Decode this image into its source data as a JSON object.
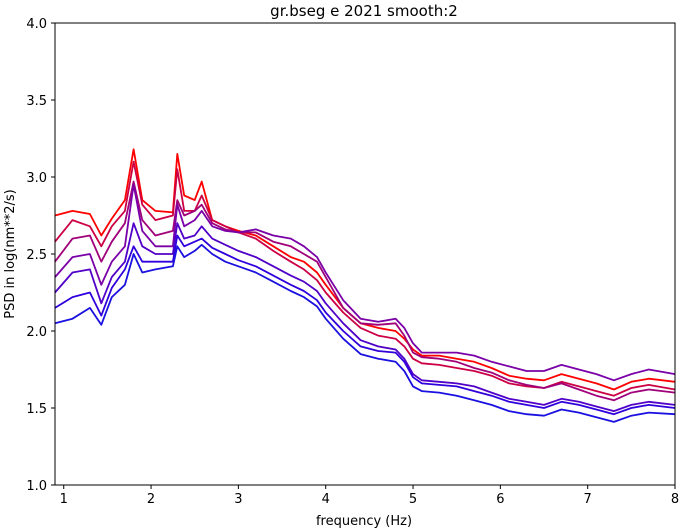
{
  "chart_data": {
    "type": "line",
    "title": "gr.bseg e 2021 smooth:2",
    "xlabel": "frequency (Hz)",
    "ylabel": "PSD in log(nm**2/s)",
    "xlim": [
      0.9,
      8.0
    ],
    "ylim": [
      1.0,
      4.0
    ],
    "xticks": [
      1,
      2,
      3,
      4,
      5,
      6,
      7,
      8
    ],
    "yticks": [
      1.0,
      1.5,
      2.0,
      2.5,
      3.0,
      3.5,
      4.0
    ],
    "grid": false,
    "legend": "none",
    "x": [
      0.9,
      1.1,
      1.3,
      1.43,
      1.55,
      1.7,
      1.8,
      1.9,
      2.05,
      2.25,
      2.3,
      2.38,
      2.5,
      2.58,
      2.7,
      2.85,
      3.0,
      3.2,
      3.4,
      3.6,
      3.75,
      3.9,
      4.0,
      4.2,
      4.4,
      4.6,
      4.8,
      4.9,
      5.0,
      5.1,
      5.3,
      5.5,
      5.7,
      5.9,
      6.1,
      6.3,
      6.5,
      6.7,
      6.9,
      7.1,
      7.3,
      7.5,
      7.7,
      8.0
    ],
    "series": [
      {
        "color": "#ff0000",
        "values": [
          2.75,
          2.78,
          2.76,
          2.62,
          2.73,
          2.85,
          3.18,
          2.85,
          2.78,
          2.77,
          3.15,
          2.88,
          2.85,
          2.97,
          2.72,
          2.68,
          2.65,
          2.62,
          2.55,
          2.48,
          2.45,
          2.38,
          2.3,
          2.15,
          2.05,
          2.02,
          2.0,
          1.95,
          1.88,
          1.84,
          1.84,
          1.82,
          1.8,
          1.76,
          1.71,
          1.69,
          1.68,
          1.72,
          1.69,
          1.66,
          1.62,
          1.67,
          1.69,
          1.67
        ]
      },
      {
        "color": "#cc0044",
        "values": [
          2.58,
          2.72,
          2.68,
          2.55,
          2.68,
          2.78,
          3.1,
          2.82,
          2.72,
          2.75,
          3.05,
          2.78,
          2.78,
          2.88,
          2.72,
          2.68,
          2.64,
          2.6,
          2.52,
          2.45,
          2.4,
          2.33,
          2.25,
          2.12,
          2.02,
          1.97,
          1.95,
          1.9,
          1.82,
          1.79,
          1.78,
          1.76,
          1.74,
          1.71,
          1.66,
          1.64,
          1.63,
          1.67,
          1.64,
          1.61,
          1.58,
          1.63,
          1.65,
          1.62
        ]
      },
      {
        "color": "#a0007a",
        "values": [
          2.45,
          2.6,
          2.62,
          2.45,
          2.58,
          2.7,
          2.97,
          2.72,
          2.62,
          2.65,
          2.85,
          2.75,
          2.78,
          2.82,
          2.7,
          2.66,
          2.64,
          2.64,
          2.58,
          2.55,
          2.5,
          2.45,
          2.35,
          2.15,
          2.05,
          2.04,
          2.05,
          1.97,
          1.86,
          1.83,
          1.82,
          1.8,
          1.76,
          1.73,
          1.68,
          1.65,
          1.63,
          1.66,
          1.62,
          1.58,
          1.55,
          1.6,
          1.62,
          1.6
        ]
      },
      {
        "color": "#7a00a8",
        "values": [
          2.35,
          2.48,
          2.5,
          2.3,
          2.45,
          2.55,
          2.95,
          2.65,
          2.55,
          2.55,
          2.82,
          2.68,
          2.72,
          2.78,
          2.68,
          2.65,
          2.64,
          2.66,
          2.62,
          2.6,
          2.55,
          2.48,
          2.38,
          2.2,
          2.08,
          2.06,
          2.08,
          2.02,
          1.92,
          1.86,
          1.86,
          1.86,
          1.84,
          1.8,
          1.77,
          1.74,
          1.74,
          1.78,
          1.75,
          1.72,
          1.68,
          1.72,
          1.75,
          1.72
        ]
      },
      {
        "color": "#5000c8",
        "values": [
          2.25,
          2.38,
          2.4,
          2.18,
          2.35,
          2.45,
          2.7,
          2.55,
          2.5,
          2.5,
          2.7,
          2.6,
          2.62,
          2.68,
          2.6,
          2.56,
          2.52,
          2.48,
          2.42,
          2.36,
          2.32,
          2.26,
          2.18,
          2.05,
          1.94,
          1.9,
          1.88,
          1.82,
          1.72,
          1.68,
          1.67,
          1.66,
          1.64,
          1.6,
          1.56,
          1.54,
          1.52,
          1.56,
          1.54,
          1.51,
          1.48,
          1.52,
          1.54,
          1.52
        ]
      },
      {
        "color": "#3000dd",
        "values": [
          2.15,
          2.22,
          2.25,
          2.1,
          2.28,
          2.4,
          2.55,
          2.45,
          2.45,
          2.45,
          2.62,
          2.55,
          2.58,
          2.6,
          2.54,
          2.5,
          2.46,
          2.42,
          2.36,
          2.3,
          2.26,
          2.2,
          2.12,
          2.0,
          1.9,
          1.87,
          1.86,
          1.8,
          1.7,
          1.66,
          1.65,
          1.64,
          1.61,
          1.58,
          1.54,
          1.52,
          1.5,
          1.54,
          1.52,
          1.49,
          1.46,
          1.5,
          1.52,
          1.5
        ]
      },
      {
        "color": "#1a10e0",
        "values": [
          2.05,
          2.08,
          2.15,
          2.04,
          2.22,
          2.3,
          2.5,
          2.38,
          2.4,
          2.42,
          2.55,
          2.48,
          2.52,
          2.56,
          2.5,
          2.45,
          2.42,
          2.38,
          2.32,
          2.26,
          2.22,
          2.16,
          2.08,
          1.95,
          1.85,
          1.82,
          1.8,
          1.74,
          1.64,
          1.61,
          1.6,
          1.58,
          1.55,
          1.52,
          1.48,
          1.46,
          1.45,
          1.49,
          1.47,
          1.44,
          1.41,
          1.45,
          1.47,
          1.46
        ]
      }
    ]
  }
}
